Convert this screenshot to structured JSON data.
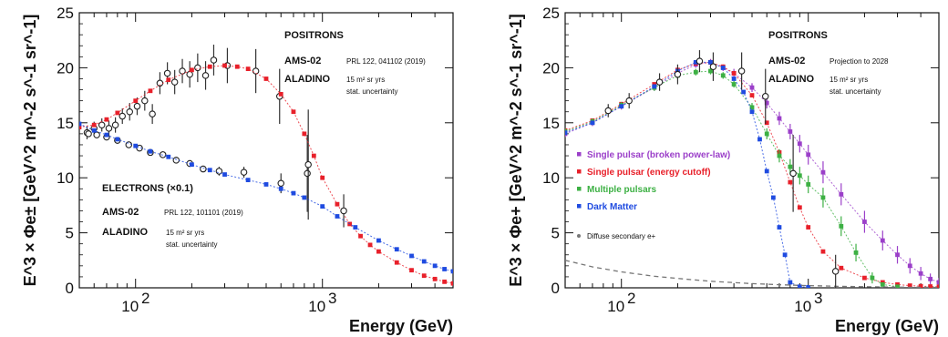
{
  "chart_data": [
    {
      "type": "scatter",
      "panel": "left",
      "xlabel": "Energy (GeV)",
      "ylabel": "E^3 × Φe± [GeV^2 m^-2 s^-1 sr^-1]",
      "xscale": "log",
      "xlim": [
        50,
        5000
      ],
      "ylim": [
        0,
        25
      ],
      "yticks": [
        "0",
        "5",
        "10",
        "15",
        "20",
        "25"
      ],
      "xticks": [
        "10",
        "10"
      ],
      "xtick_exps": [
        "2",
        "3"
      ],
      "legend": {
        "positron_header": "POSITRONS",
        "positron_ams": "AMS-02",
        "positron_ref": "PRL 122, 041102 (2019)",
        "positron_aladino": "ALADINO",
        "positron_exposure": "15 m² sr yrs",
        "positron_stat": "stat. uncertainty",
        "electron_header": "ELECTRONS (×0.1)",
        "electron_ams": "AMS-02",
        "electron_ref": "PRL 122, 101101 (2019)",
        "electron_aladino": "ALADINO",
        "electron_exposure": "15 m² sr yrs",
        "electron_stat": "stat. uncertainty"
      },
      "series": [
        {
          "name": "AMS-02 positrons",
          "color": "#222222",
          "marker": "open-circle",
          "points": [
            [
              55,
              14.1
            ],
            [
              60,
              14.5
            ],
            [
              66,
              14.8
            ],
            [
              72,
              14.5
            ],
            [
              78,
              14.8
            ],
            [
              85,
              15.6
            ],
            [
              93,
              16.0
            ],
            [
              102,
              16.5
            ],
            [
              112,
              17.0
            ],
            [
              123,
              15.8
            ],
            [
              135,
              18.6
            ],
            [
              148,
              19.5
            ],
            [
              162,
              18.7
            ],
            [
              178,
              19.7
            ],
            [
              195,
              19.4
            ],
            [
              215,
              20.0
            ],
            [
              237,
              19.3
            ],
            [
              262,
              20.7
            ],
            [
              310,
              20.2
            ],
            [
              440,
              19.7
            ],
            [
              590,
              17.4
            ],
            [
              830,
              10.4
            ],
            [
              840,
              11.2
            ]
          ],
          "err": [
            0.6,
            0.6,
            0.6,
            0.7,
            0.7,
            0.7,
            0.8,
            0.8,
            0.9,
            0.9,
            1.0,
            1.0,
            1.1,
            1.1,
            1.2,
            1.3,
            1.3,
            1.4,
            1.6,
            2.0,
            2.5,
            3.5,
            5.0
          ]
        },
        {
          "name": "ALADINO positrons",
          "color": "#e8202a",
          "marker": "filled-square",
          "points": [
            [
              50,
              14.6
            ],
            [
              60,
              14.8
            ],
            [
              70,
              15.3
            ],
            [
              80,
              15.9
            ],
            [
              100,
              17.0
            ],
            [
              120,
              17.9
            ],
            [
              150,
              18.9
            ],
            [
              200,
              19.8
            ],
            [
              250,
              20.1
            ],
            [
              300,
              20.2
            ],
            [
              350,
              20.1
            ],
            [
              400,
              19.9
            ],
            [
              500,
              19.0
            ],
            [
              600,
              17.6
            ],
            [
              700,
              16.0
            ],
            [
              800,
              14.0
            ],
            [
              900,
              12.0
            ],
            [
              1000,
              10.0
            ],
            [
              1200,
              7.6
            ],
            [
              1400,
              5.8
            ],
            [
              1600,
              4.7
            ],
            [
              1800,
              3.9
            ],
            [
              2000,
              3.3
            ],
            [
              2500,
              2.3
            ],
            [
              3000,
              1.6
            ],
            [
              3500,
              1.1
            ],
            [
              4000,
              0.8
            ],
            [
              4500,
              0.55
            ],
            [
              5000,
              0.4
            ]
          ]
        },
        {
          "name": "AMS-02 electrons (x0.1)",
          "color": "#222222",
          "marker": "open-circle",
          "points": [
            [
              56,
              14.0
            ],
            [
              62,
              13.9
            ],
            [
              70,
              13.7
            ],
            [
              80,
              13.4
            ],
            [
              92,
              13.0
            ],
            [
              105,
              12.7
            ],
            [
              120,
              12.3
            ],
            [
              140,
              12.1
            ],
            [
              165,
              11.6
            ],
            [
              195,
              11.3
            ],
            [
              230,
              10.8
            ],
            [
              280,
              10.6
            ],
            [
              380,
              10.5
            ],
            [
              600,
              9.5
            ],
            [
              1300,
              7.0
            ]
          ],
          "err": [
            0.3,
            0.3,
            0.3,
            0.3,
            0.3,
            0.3,
            0.3,
            0.3,
            0.3,
            0.3,
            0.3,
            0.4,
            0.5,
            0.9,
            1.5
          ]
        },
        {
          "name": "ALADINO electrons (x0.1)",
          "color": "#1f4be0",
          "marker": "filled-square",
          "points": [
            [
              50,
              14.9
            ],
            [
              60,
              14.3
            ],
            [
              70,
              13.9
            ],
            [
              80,
              13.5
            ],
            [
              100,
              12.9
            ],
            [
              120,
              12.4
            ],
            [
              150,
              11.9
            ],
            [
              200,
              11.2
            ],
            [
              250,
              10.7
            ],
            [
              300,
              10.3
            ],
            [
              400,
              9.8
            ],
            [
              500,
              9.4
            ],
            [
              600,
              9.0
            ],
            [
              700,
              8.6
            ],
            [
              800,
              8.2
            ],
            [
              1000,
              7.4
            ],
            [
              1200,
              6.5
            ],
            [
              1500,
              5.5
            ],
            [
              2000,
              4.3
            ],
            [
              2500,
              3.5
            ],
            [
              3000,
              2.9
            ],
            [
              3500,
              2.4
            ],
            [
              4000,
              2.0
            ],
            [
              4500,
              1.7
            ],
            [
              5000,
              1.5
            ]
          ]
        }
      ]
    },
    {
      "type": "scatter",
      "panel": "right",
      "xlabel": "Energy (GeV)",
      "ylabel": "E^3 × Φe+ [GeV^2 m^-2 s^-1 sr^-1]",
      "xscale": "log",
      "xlim": [
        50,
        5000
      ],
      "ylim": [
        0,
        25
      ],
      "yticks": [
        "0",
        "5",
        "10",
        "15",
        "20",
        "25"
      ],
      "xticks": [
        "10",
        "10"
      ],
      "xtick_exps": [
        "2",
        "3"
      ],
      "legend": {
        "header": "POSITRONS",
        "ams": "AMS-02",
        "projection": "Projection to 2028",
        "aladino": "ALADINO",
        "exposure": "15 m² sr yrs",
        "stat": "stat. uncertainty"
      },
      "series": [
        {
          "name": "Single pulsar (broken power-law)",
          "color": "#9b3fc9",
          "points": [
            [
              50,
              14.0
            ],
            [
              70,
              15.0
            ],
            [
              100,
              16.5
            ],
            [
              150,
              18.2
            ],
            [
              200,
              19.5
            ],
            [
              250,
              20.3
            ],
            [
              300,
              20.5
            ],
            [
              350,
              20.0
            ],
            [
              400,
              19.5
            ],
            [
              500,
              18.2
            ],
            [
              600,
              16.8
            ],
            [
              700,
              15.4
            ],
            [
              800,
              14.2
            ],
            [
              900,
              13.1
            ],
            [
              1000,
              12.1
            ],
            [
              1200,
              10.5
            ],
            [
              1500,
              8.5
            ],
            [
              2000,
              6.0
            ],
            [
              2500,
              4.3
            ],
            [
              3000,
              3.0
            ],
            [
              3500,
              2.0
            ],
            [
              4000,
              1.3
            ],
            [
              4500,
              0.8
            ],
            [
              5000,
              0.5
            ]
          ],
          "err": [
            0.3,
            0.3,
            0.3,
            0.3,
            0.3,
            0.3,
            0.3,
            0.3,
            0.4,
            0.4,
            0.5,
            0.6,
            0.7,
            0.8,
            0.9,
            1.0,
            1.0,
            1.0,
            0.9,
            0.8,
            0.7,
            0.6,
            0.5,
            0.4
          ]
        },
        {
          "name": "Single pulsar (energy cutoff)",
          "color": "#e8202a",
          "points": [
            [
              50,
              14.3
            ],
            [
              70,
              15.2
            ],
            [
              100,
              16.7
            ],
            [
              150,
              18.5
            ],
            [
              200,
              19.8
            ],
            [
              250,
              20.4
            ],
            [
              300,
              20.5
            ],
            [
              350,
              20.1
            ],
            [
              400,
              19.5
            ],
            [
              500,
              17.5
            ],
            [
              600,
              15.0
            ],
            [
              700,
              12.3
            ],
            [
              800,
              9.6
            ],
            [
              900,
              7.3
            ],
            [
              1000,
              5.5
            ],
            [
              1200,
              3.3
            ],
            [
              1500,
              1.8
            ],
            [
              2000,
              0.9
            ],
            [
              2500,
              0.5
            ],
            [
              3000,
              0.3
            ],
            [
              3500,
              0.2
            ],
            [
              4000,
              0.15
            ],
            [
              4500,
              0.12
            ],
            [
              5000,
              0.1
            ]
          ]
        },
        {
          "name": "Multiple pulsars",
          "color": "#3cb043",
          "points": [
            [
              50,
              14.2
            ],
            [
              70,
              15.1
            ],
            [
              100,
              16.6
            ],
            [
              150,
              18.2
            ],
            [
              200,
              19.3
            ],
            [
              250,
              19.6
            ],
            [
              300,
              19.7
            ],
            [
              350,
              19.3
            ],
            [
              400,
              18.5
            ],
            [
              500,
              16.4
            ],
            [
              600,
              14.0
            ],
            [
              700,
              12.0
            ],
            [
              800,
              11.0
            ],
            [
              900,
              10.2
            ],
            [
              1000,
              9.4
            ],
            [
              1200,
              8.2
            ],
            [
              1500,
              5.6
            ],
            [
              1800,
              3.2
            ],
            [
              2200,
              0.9
            ],
            [
              2500,
              0.3
            ],
            [
              3000,
              0.1
            ]
          ],
          "err": [
            0.3,
            0.3,
            0.3,
            0.3,
            0.3,
            0.3,
            0.3,
            0.3,
            0.3,
            0.4,
            0.5,
            0.6,
            0.7,
            0.8,
            0.8,
            0.9,
            0.9,
            0.8,
            0.5,
            0.2,
            0.1
          ]
        },
        {
          "name": "Dark Matter",
          "color": "#1f4be0",
          "points": [
            [
              50,
              14.1
            ],
            [
              70,
              15.0
            ],
            [
              100,
              16.5
            ],
            [
              150,
              18.3
            ],
            [
              200,
              19.7
            ],
            [
              250,
              20.5
            ],
            [
              300,
              20.5
            ],
            [
              350,
              20.0
            ],
            [
              400,
              19.0
            ],
            [
              450,
              17.8
            ],
            [
              500,
              16.0
            ],
            [
              550,
              13.5
            ],
            [
              600,
              10.6
            ],
            [
              650,
              8.2
            ],
            [
              700,
              5.5
            ],
            [
              750,
              3.0
            ],
            [
              800,
              0.5
            ],
            [
              900,
              0.1
            ],
            [
              1000,
              0.05
            ]
          ]
        },
        {
          "name": "Diffuse secondary e+",
          "color": "#777777",
          "points": [
            [
              50,
              2.5
            ],
            [
              70,
              1.9
            ],
            [
              100,
              1.45
            ],
            [
              150,
              1.05
            ],
            [
              200,
              0.85
            ],
            [
              300,
              0.6
            ],
            [
              500,
              0.38
            ],
            [
              700,
              0.28
            ],
            [
              1000,
              0.2
            ],
            [
              1500,
              0.13
            ],
            [
              2000,
              0.1
            ],
            [
              3000,
              0.06
            ],
            [
              5000,
              0.04
            ]
          ]
        },
        {
          "name": "AMS-02 positrons",
          "color": "#222222",
          "marker": "open-circle",
          "points": [
            [
              85,
              16.1
            ],
            [
              110,
              17.0
            ],
            [
              160,
              18.7
            ],
            [
              200,
              19.4
            ],
            [
              262,
              20.6
            ],
            [
              310,
              20.1
            ],
            [
              440,
              19.7
            ],
            [
              590,
              17.4
            ],
            [
              830,
              10.4
            ],
            [
              1400,
              1.5
            ]
          ],
          "err": [
            0.6,
            0.7,
            0.8,
            0.9,
            1.0,
            1.3,
            1.7,
            2.5,
            3.5,
            1.5
          ]
        }
      ]
    }
  ]
}
